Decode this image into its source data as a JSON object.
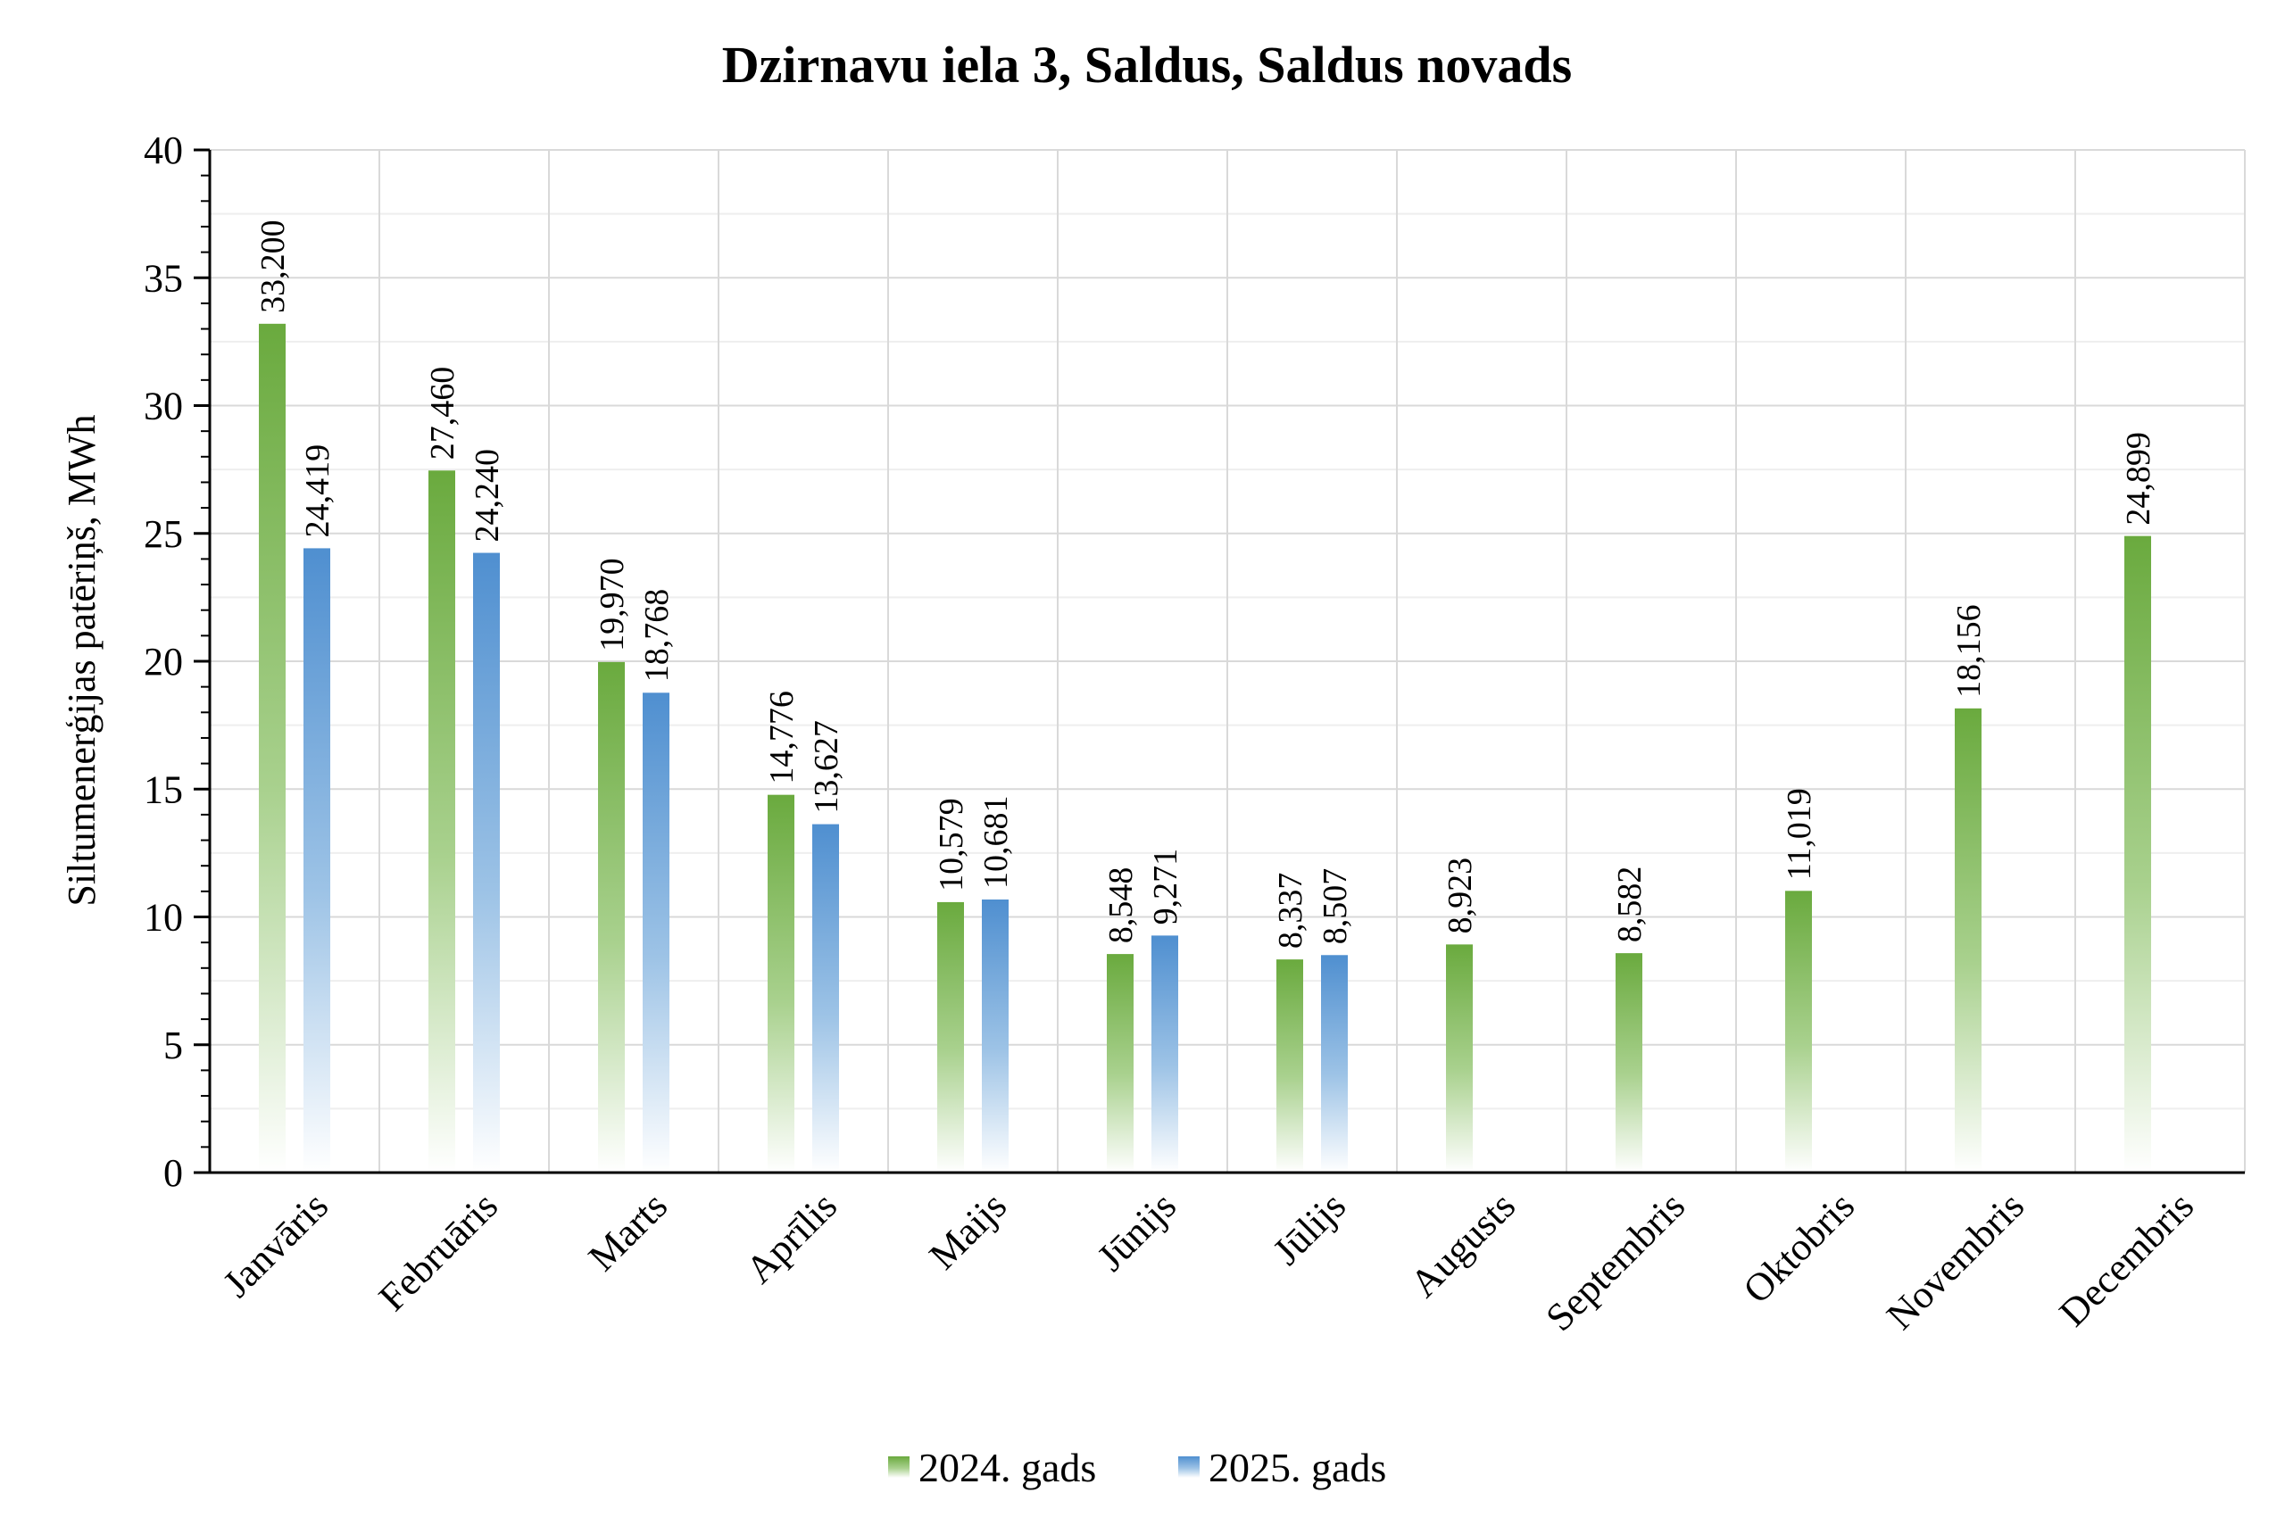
{
  "chart_data": {
    "type": "bar",
    "title": "Dzirnavu iela 3, Saldus, Saldus novads",
    "xlabel": "",
    "ylabel": "Siltumenerģijas patēriņš, MWh",
    "ylim": [
      0,
      40
    ],
    "yticks": [
      0,
      5,
      10,
      15,
      20,
      25,
      30,
      35,
      40
    ],
    "grid": true,
    "legend_position": "bottom",
    "categories": [
      "Janvāris",
      "Februāris",
      "Marts",
      "Aprīlis",
      "Maijs",
      "Jūnijs",
      "Jūlijs",
      "Augusts",
      "Septembris",
      "Oktobris",
      "Novembris",
      "Decembris"
    ],
    "series": [
      {
        "name": "2024. gads",
        "color": "#70ad47",
        "values": [
          33.2,
          27.46,
          19.97,
          14.776,
          10.579,
          8.548,
          8.337,
          8.923,
          8.582,
          11.019,
          18.156,
          24.899
        ],
        "labels": [
          "33,200",
          "27,460",
          "19,970",
          "14,776",
          "10,579",
          "8,548",
          "8,337",
          "8,923",
          "8,582",
          "11,019",
          "18,156",
          "24,899"
        ]
      },
      {
        "name": "2025. gads",
        "color": "#5b9bd5",
        "values": [
          24.419,
          24.24,
          18.768,
          13.627,
          10.681,
          9.271,
          8.507,
          null,
          null,
          null,
          null,
          null
        ],
        "labels": [
          "24,419",
          "24,240",
          "18,768",
          "13,627",
          "10,681",
          "9,271",
          "8,507",
          null,
          null,
          null,
          null,
          null
        ]
      }
    ]
  }
}
